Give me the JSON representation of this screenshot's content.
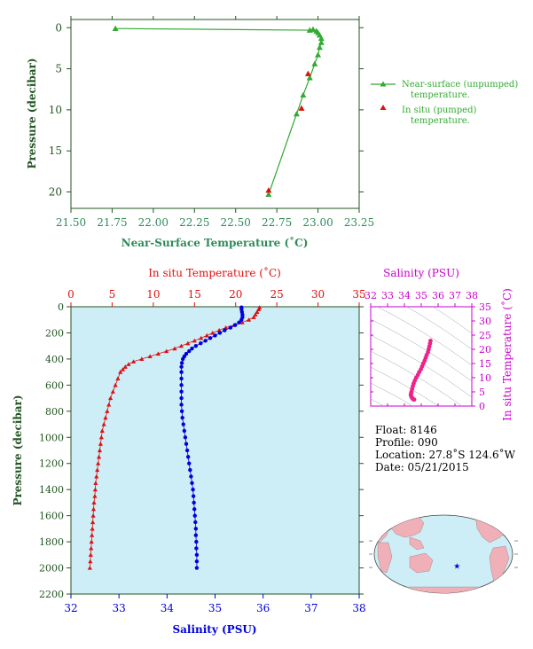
{
  "colors": {
    "green": "#33aa33",
    "green_text": "#2e8b57",
    "axis_green": "#225522",
    "red": "#dd1111",
    "blue": "#0000dd",
    "magenta": "#cc00cc",
    "pink": "#ee2288",
    "panel_bg": "#cdeef7",
    "land": "#f0b0b8",
    "ocean": "#cdeef7"
  },
  "chart_data": [
    {
      "type": "line",
      "xlabel": "Near-Surface Temperature (˚C)",
      "ylabel": "Pressure (decibar)",
      "xlim": [
        21.5,
        23.25
      ],
      "ylim": [
        22,
        -1
      ],
      "xticks": [
        "21.50",
        "21.75",
        "22.00",
        "22.25",
        "22.50",
        "22.75",
        "23.00",
        "23.25"
      ],
      "yticks": [
        "0",
        "5",
        "10",
        "15",
        "20"
      ],
      "legend_position": "right",
      "series": [
        {
          "name": "Near-surface (unpumped) temperature.",
          "marker": "triangle",
          "points": [
            [
              21.77,
              0.1
            ],
            [
              22.95,
              0.3
            ],
            [
              22.97,
              0.2
            ],
            [
              22.99,
              0.4
            ],
            [
              23.0,
              0.6
            ],
            [
              23.01,
              0.9
            ],
            [
              23.02,
              1.3
            ],
            [
              23.02,
              1.8
            ],
            [
              23.01,
              2.4
            ],
            [
              23.0,
              3.3
            ],
            [
              22.98,
              4.4
            ],
            [
              22.95,
              6.1
            ],
            [
              22.91,
              8.2
            ],
            [
              22.87,
              10.5
            ],
            [
              22.7,
              20.3
            ]
          ]
        },
        {
          "name": "In situ (pumped) temperature.",
          "marker": "triangle",
          "points": [
            [
              22.94,
              5.6
            ],
            [
              22.9,
              9.8
            ],
            [
              22.7,
              19.8
            ]
          ]
        }
      ]
    },
    {
      "type": "line",
      "xlabel_top": "In situ Temperature (˚C)",
      "xlabel_bottom": "Salinity (PSU)",
      "ylabel": "Pressure (decibar)",
      "temp_xlim": [
        0,
        35
      ],
      "sal_xlim": [
        32,
        38
      ],
      "ylim": [
        2200,
        0
      ],
      "temp_ticks": [
        "0",
        "5",
        "10",
        "15",
        "20",
        "25",
        "30",
        "35"
      ],
      "sal_ticks": [
        "32",
        "33",
        "34",
        "35",
        "36",
        "37",
        "38"
      ],
      "yticks": [
        "0",
        "200",
        "400",
        "600",
        "800",
        "1000",
        "1200",
        "1400",
        "1600",
        "1800",
        "2000",
        "2200"
      ],
      "series": [
        {
          "name": "In situ Temperature",
          "marker": "triangle",
          "points": [
            [
              22.9,
              5
            ],
            [
              22.8,
              20
            ],
            [
              22.6,
              40
            ],
            [
              22.4,
              60
            ],
            [
              22.2,
              80
            ],
            [
              21.6,
              100
            ],
            [
              20.8,
              120
            ],
            [
              19.8,
              140
            ],
            [
              18.8,
              160
            ],
            [
              18.0,
              180
            ],
            [
              17.2,
              200
            ],
            [
              16.5,
              220
            ],
            [
              15.8,
              240
            ],
            [
              15.0,
              260
            ],
            [
              14.2,
              280
            ],
            [
              13.4,
              300
            ],
            [
              12.6,
              320
            ],
            [
              11.6,
              340
            ],
            [
              10.6,
              360
            ],
            [
              9.6,
              380
            ],
            [
              8.6,
              400
            ],
            [
              7.6,
              420
            ],
            [
              7.0,
              440
            ],
            [
              6.6,
              460
            ],
            [
              6.3,
              480
            ],
            [
              6.0,
              500
            ],
            [
              5.7,
              550
            ],
            [
              5.4,
              600
            ],
            [
              5.1,
              650
            ],
            [
              4.8,
              700
            ],
            [
              4.6,
              750
            ],
            [
              4.4,
              800
            ],
            [
              4.2,
              850
            ],
            [
              4.0,
              900
            ],
            [
              3.8,
              950
            ],
            [
              3.7,
              1000
            ],
            [
              3.6,
              1050
            ],
            [
              3.5,
              1100
            ],
            [
              3.4,
              1150
            ],
            [
              3.3,
              1200
            ],
            [
              3.2,
              1250
            ],
            [
              3.1,
              1300
            ],
            [
              3.0,
              1350
            ],
            [
              2.95,
              1400
            ],
            [
              2.9,
              1450
            ],
            [
              2.8,
              1500
            ],
            [
              2.75,
              1550
            ],
            [
              2.7,
              1600
            ],
            [
              2.65,
              1650
            ],
            [
              2.6,
              1700
            ],
            [
              2.55,
              1750
            ],
            [
              2.5,
              1800
            ],
            [
              2.45,
              1850
            ],
            [
              2.4,
              1900
            ],
            [
              2.35,
              1950
            ],
            [
              2.3,
              2000
            ]
          ]
        },
        {
          "name": "Salinity",
          "marker": "circle",
          "points": [
            [
              35.55,
              5
            ],
            [
              35.55,
              20
            ],
            [
              35.56,
              40
            ],
            [
              35.57,
              60
            ],
            [
              35.57,
              80
            ],
            [
              35.55,
              100
            ],
            [
              35.5,
              120
            ],
            [
              35.42,
              140
            ],
            [
              35.32,
              160
            ],
            [
              35.2,
              180
            ],
            [
              35.1,
              200
            ],
            [
              35.0,
              220
            ],
            [
              34.9,
              240
            ],
            [
              34.8,
              260
            ],
            [
              34.7,
              280
            ],
            [
              34.6,
              300
            ],
            [
              34.52,
              320
            ],
            [
              34.46,
              340
            ],
            [
              34.4,
              360
            ],
            [
              34.36,
              380
            ],
            [
              34.33,
              400
            ],
            [
              34.31,
              430
            ],
            [
              34.3,
              460
            ],
            [
              34.3,
              500
            ],
            [
              34.3,
              550
            ],
            [
              34.3,
              600
            ],
            [
              34.3,
              650
            ],
            [
              34.3,
              700
            ],
            [
              34.3,
              750
            ],
            [
              34.31,
              800
            ],
            [
              34.32,
              850
            ],
            [
              34.34,
              900
            ],
            [
              34.36,
              950
            ],
            [
              34.38,
              1000
            ],
            [
              34.4,
              1050
            ],
            [
              34.42,
              1100
            ],
            [
              34.44,
              1150
            ],
            [
              34.46,
              1200
            ],
            [
              34.48,
              1250
            ],
            [
              34.5,
              1300
            ],
            [
              34.52,
              1350
            ],
            [
              34.54,
              1400
            ],
            [
              34.55,
              1450
            ],
            [
              34.56,
              1500
            ],
            [
              34.57,
              1550
            ],
            [
              34.58,
              1600
            ],
            [
              34.59,
              1650
            ],
            [
              34.6,
              1700
            ],
            [
              34.6,
              1750
            ],
            [
              34.61,
              1800
            ],
            [
              34.61,
              1850
            ],
            [
              34.62,
              1900
            ],
            [
              34.62,
              1950
            ],
            [
              34.62,
              2000
            ]
          ]
        }
      ]
    },
    {
      "type": "scatter",
      "xlabel": "Salinity (PSU)",
      "ylabel": "In situ Temperature (˚C)",
      "xlim": [
        32,
        38
      ],
      "ylim": [
        0,
        35
      ],
      "xticks": [
        "32",
        "33",
        "34",
        "35",
        "36",
        "37",
        "38"
      ],
      "yticks": [
        "0",
        "5",
        "10",
        "15",
        "20",
        "25",
        "30",
        "35"
      ],
      "points": [
        [
          35.55,
          23
        ],
        [
          35.52,
          22
        ],
        [
          35.48,
          21
        ],
        [
          35.44,
          20
        ],
        [
          35.4,
          19
        ],
        [
          35.32,
          18
        ],
        [
          35.26,
          17
        ],
        [
          35.2,
          16
        ],
        [
          35.12,
          15
        ],
        [
          35.05,
          14
        ],
        [
          34.98,
          13
        ],
        [
          34.88,
          12
        ],
        [
          34.8,
          11
        ],
        [
          34.7,
          10
        ],
        [
          34.62,
          9
        ],
        [
          34.55,
          8
        ],
        [
          34.5,
          7
        ],
        [
          34.46,
          6
        ],
        [
          34.42,
          5
        ],
        [
          34.4,
          4.5
        ],
        [
          34.38,
          4
        ],
        [
          34.4,
          3.5
        ],
        [
          34.44,
          3
        ],
        [
          34.48,
          2.7
        ],
        [
          34.52,
          2.4
        ],
        [
          34.58,
          2.3
        ]
      ]
    }
  ],
  "info": {
    "float": "Float: 8146",
    "profile": "Profile: 090",
    "location": "Location: 27.8˚S 124.6˚W",
    "date": "Date: 05/21/2015"
  },
  "map": {
    "marker_lon": -124.6,
    "marker_lat": -27.8
  }
}
